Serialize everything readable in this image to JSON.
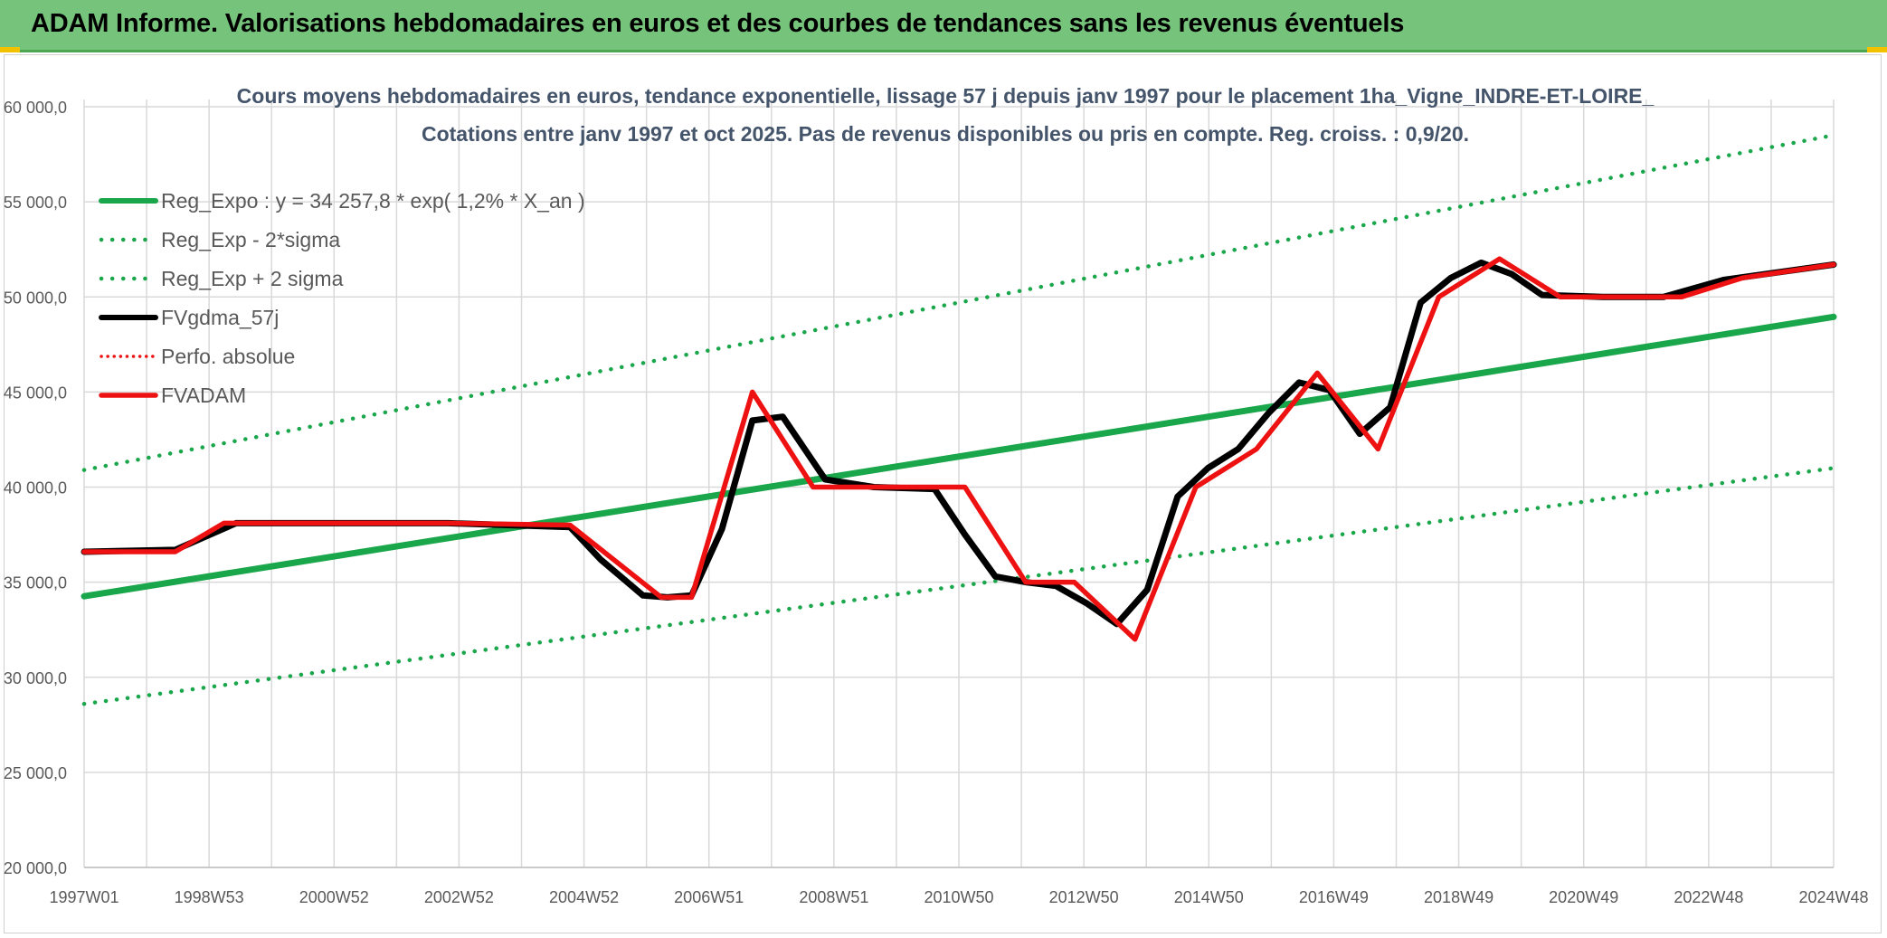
{
  "header": {
    "title": "ADAM Informe. Valorisations hebdomadaires en euros et des courbes de tendances sans les revenus éventuels"
  },
  "chart_data": {
    "type": "line",
    "title": "Cours moyens hebdomadaires en euros, tendance exponentielle, lissage 57 j depuis janv 1997 pour le placement 1ha_Vigne_INDRE-ET-LOIRE_",
    "subtitle": "Cotations entre janv 1997 et oct 2025. Pas de revenus disponibles ou pris en compte. Reg. croiss. : 0,9/20.",
    "xlabel": "",
    "ylabel": "",
    "x_ticks": [
      "1997W01",
      "1998W53",
      "2000W52",
      "2002W52",
      "2004W52",
      "2006W51",
      "2008W51",
      "2010W50",
      "2012W50",
      "2014W50",
      "2016W49",
      "2018W49",
      "2020W49",
      "2022W48",
      "2024W48"
    ],
    "x_range": [
      1997.0,
      2025.8
    ],
    "ylim": [
      20000,
      60000
    ],
    "y_ticks": [
      "20 000,0",
      "25 000,0",
      "30 000,0",
      "35 000,0",
      "40 000,0",
      "45 000,0",
      "50 000,0",
      "55 000,0",
      "60 000,0"
    ],
    "grid": true,
    "legend_position": "top-left",
    "colors": {
      "green": "#1aa64a",
      "black": "#000000",
      "red": "#ee1111",
      "grid": "#d9d9d9",
      "axis_text": "#595959",
      "title_text": "#44546a"
    },
    "series": [
      {
        "name": "Reg_Expo : y = 34 257,8 * exp( 1,2% *  X_an )",
        "style": "solid-thick-green",
        "x": [
          1997.0,
          2025.8
        ],
        "y": [
          34258,
          48950
        ]
      },
      {
        "name": "Reg_Exp - 2*sigma",
        "style": "dotted-green",
        "x": [
          1997.0,
          2025.8
        ],
        "y": [
          28600,
          41000
        ]
      },
      {
        "name": "Reg_Exp + 2 sigma",
        "style": "dotted-green",
        "x": [
          1997.0,
          2025.8
        ],
        "y": [
          40900,
          58500
        ]
      },
      {
        "name": "FVgdma_57j",
        "style": "solid-black",
        "x": [
          1997.0,
          1998.5,
          1999.0,
          1999.5,
          2003.0,
          2005.0,
          2005.5,
          2006.2,
          2006.6,
          2007.0,
          2007.5,
          2008.0,
          2008.5,
          2009.2,
          2010.0,
          2011.0,
          2011.5,
          2012.0,
          2012.5,
          2013.0,
          2013.5,
          2014.0,
          2014.5,
          2015.0,
          2015.5,
          2016.0,
          2016.5,
          2017.0,
          2017.5,
          2018.0,
          2018.5,
          2019.0,
          2019.5,
          2020.0,
          2020.5,
          2021.0,
          2022.0,
          2023.0,
          2024.0,
          2025.8
        ],
        "y": [
          36600,
          36700,
          37400,
          38100,
          38100,
          37900,
          36200,
          34300,
          34200,
          34300,
          37800,
          43500,
          43700,
          40400,
          40000,
          39900,
          37500,
          35300,
          35000,
          34800,
          33900,
          32800,
          34600,
          39500,
          41000,
          42000,
          43900,
          45500,
          45100,
          42800,
          44200,
          49700,
          51000,
          51800,
          51200,
          50100,
          50000,
          50000,
          50900,
          51700
        ]
      },
      {
        "name": "Perfo. absolue",
        "style": "dotted-red",
        "x": [],
        "y": []
      },
      {
        "name": "FVADAM",
        "style": "solid-thick-red",
        "x": [
          1997.0,
          1998.5,
          1999.3,
          2003.0,
          2005.0,
          2006.5,
          2007.0,
          2008.0,
          2009.0,
          2011.5,
          2012.5,
          2013.3,
          2014.3,
          2015.3,
          2016.3,
          2017.3,
          2018.3,
          2019.3,
          2020.3,
          2021.3,
          2023.3,
          2024.3,
          2025.8
        ],
        "y": [
          36600,
          36600,
          38100,
          38100,
          38000,
          34200,
          34200,
          45000,
          40000,
          40000,
          35000,
          35000,
          32000,
          40000,
          42000,
          46000,
          42000,
          50000,
          52000,
          50000,
          50000,
          51000,
          51700
        ]
      }
    ]
  }
}
